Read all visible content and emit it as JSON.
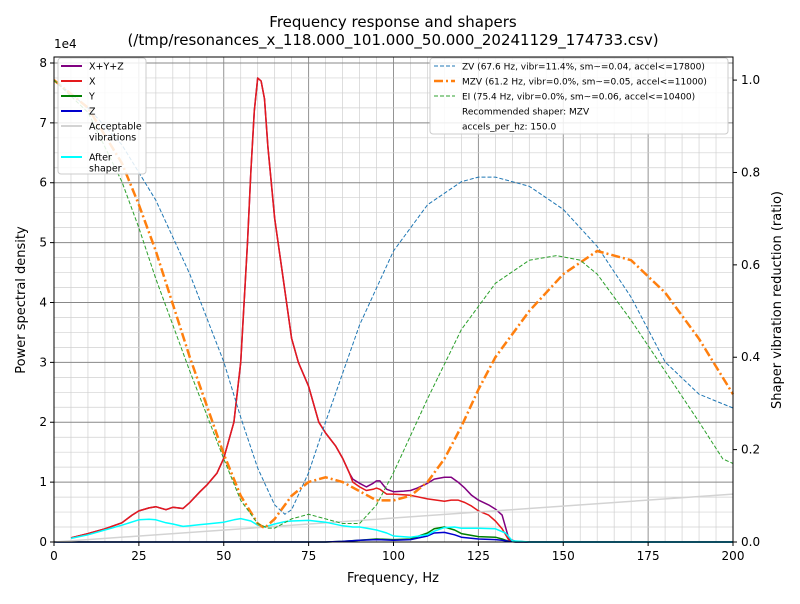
{
  "chart_data": {
    "type": "line",
    "title": "Frequency response and shapers",
    "subtitle": "(/tmp/resonances_x_118.000_101.000_50.000_20241129_174733.csv)",
    "xlabel": "Frequency, Hz",
    "ylabel": "Power spectral density",
    "y2label": "Shaper vibration reduction (ratio)",
    "y_offset_label": "1e4",
    "xlim": [
      0,
      200
    ],
    "ylim": [
      0,
      8.1
    ],
    "y2lim": [
      0,
      1.05
    ],
    "xticks": [
      "0",
      "25",
      "50",
      "75",
      "100",
      "125",
      "150",
      "175",
      "200"
    ],
    "yticks": [
      "0",
      "1",
      "2",
      "3",
      "4",
      "5",
      "6",
      "7",
      "8"
    ],
    "y2ticks": [
      "0.0",
      "0.2",
      "0.4",
      "0.6",
      "0.8",
      "1.0"
    ],
    "grid": true,
    "legend_left": [
      "X+Y+Z",
      "X",
      "Y",
      "Z",
      "Acceptable\nvibrations",
      "After\nshaper"
    ],
    "legend_right": [
      "ZV (67.6 Hz, vibr=11.4%, sm~=0.04, accel<=17800)",
      "MZV (61.2 Hz, vibr=0.0%, sm~=0.05, accel<=11000)",
      "EI (75.4 Hz, vibr=0.0%, sm~=0.06, accel<=10400)",
      "Recommended shaper: MZV",
      "accels_per_hz: 150.0"
    ],
    "colors": {
      "xyz": "#800080",
      "x": "#e41a1c",
      "y": "#008000",
      "z": "#0000cd",
      "acceptable": "#d3d3d3",
      "after": "#00ffff",
      "zv": "#1f77b4",
      "mzv": "#ff7f0e",
      "ei": "#2ca02c"
    },
    "psd_series": [
      {
        "name": "X+Y+Z",
        "key": "xyz",
        "width": 1.5,
        "x": [
          5,
          10,
          15,
          20,
          23,
          25,
          28,
          30,
          33,
          35,
          38,
          40,
          43,
          45,
          48,
          50,
          53,
          55,
          57,
          58,
          59,
          60,
          61,
          62,
          63,
          65,
          67,
          70,
          72,
          75,
          78,
          80,
          83,
          85,
          87,
          88,
          90,
          92,
          94,
          95,
          96,
          97,
          98,
          100,
          103,
          105,
          107,
          110,
          112,
          115,
          117,
          119,
          121,
          123,
          125,
          128,
          130,
          132,
          134,
          136,
          140,
          150,
          175,
          200
        ],
        "y": [
          0.07,
          0.14,
          0.22,
          0.32,
          0.45,
          0.52,
          0.57,
          0.59,
          0.54,
          0.58,
          0.56,
          0.66,
          0.84,
          0.95,
          1.15,
          1.4,
          2.0,
          3.0,
          5.0,
          6.2,
          7.2,
          7.75,
          7.7,
          7.4,
          6.6,
          5.4,
          4.6,
          3.4,
          3.0,
          2.6,
          2.0,
          1.82,
          1.6,
          1.4,
          1.15,
          1.05,
          0.98,
          0.92,
          0.98,
          1.02,
          1.02,
          0.95,
          0.88,
          0.84,
          0.85,
          0.86,
          0.9,
          0.98,
          1.05,
          1.08,
          1.08,
          1.0,
          0.9,
          0.78,
          0.7,
          0.62,
          0.55,
          0.45,
          0.05,
          0.01,
          0.0,
          0.0,
          0.0,
          0.0
        ]
      },
      {
        "name": "X",
        "key": "x",
        "width": 1.5,
        "x": [
          5,
          10,
          15,
          20,
          23,
          25,
          28,
          30,
          33,
          35,
          38,
          40,
          43,
          45,
          48,
          50,
          53,
          55,
          57,
          58,
          59,
          60,
          61,
          62,
          63,
          65,
          67,
          70,
          72,
          75,
          78,
          80,
          83,
          85,
          87,
          88,
          90,
          92,
          94,
          95,
          96,
          97,
          98,
          100,
          105,
          110,
          115,
          117,
          119,
          121,
          123,
          125,
          128,
          130,
          132,
          134,
          136,
          140,
          150,
          175,
          200
        ],
        "y": [
          0.07,
          0.14,
          0.22,
          0.32,
          0.45,
          0.52,
          0.57,
          0.59,
          0.54,
          0.58,
          0.56,
          0.66,
          0.84,
          0.95,
          1.15,
          1.4,
          2.0,
          3.0,
          5.0,
          6.2,
          7.2,
          7.75,
          7.7,
          7.4,
          6.6,
          5.4,
          4.6,
          3.4,
          3.0,
          2.6,
          2.0,
          1.82,
          1.6,
          1.4,
          1.15,
          1.0,
          0.92,
          0.86,
          0.88,
          0.9,
          0.88,
          0.84,
          0.8,
          0.8,
          0.78,
          0.72,
          0.68,
          0.7,
          0.7,
          0.66,
          0.6,
          0.52,
          0.45,
          0.35,
          0.22,
          0.03,
          0.01,
          0.0,
          0.0,
          0.0,
          0.0
        ]
      },
      {
        "name": "Y",
        "key": "y",
        "width": 1.5,
        "x": [
          0,
          80,
          85,
          90,
          95,
          100,
          105,
          110,
          112,
          115,
          118,
          120,
          125,
          130,
          132,
          134,
          136,
          200
        ],
        "y": [
          0.0,
          0.0,
          0.01,
          0.03,
          0.05,
          0.04,
          0.05,
          0.15,
          0.22,
          0.25,
          0.2,
          0.14,
          0.09,
          0.08,
          0.05,
          0.01,
          0.0,
          0.0
        ]
      },
      {
        "name": "Z",
        "key": "z",
        "width": 1.5,
        "x": [
          0,
          80,
          85,
          90,
          95,
          100,
          105,
          110,
          112,
          115,
          118,
          120,
          125,
          130,
          132,
          134,
          136,
          200
        ],
        "y": [
          0.0,
          0.0,
          0.01,
          0.03,
          0.04,
          0.03,
          0.04,
          0.1,
          0.15,
          0.16,
          0.12,
          0.08,
          0.05,
          0.04,
          0.03,
          0.01,
          0.0,
          0.0
        ]
      },
      {
        "name": "Acceptable vibrations",
        "key": "acceptable",
        "width": 1.5,
        "x": [
          0,
          200
        ],
        "y": [
          0.0,
          0.8
        ]
      },
      {
        "name": "After shaper",
        "key": "after",
        "width": 1.5,
        "x": [
          5,
          10,
          15,
          20,
          25,
          28,
          30,
          33,
          35,
          38,
          40,
          43,
          45,
          50,
          53,
          55,
          58,
          60,
          62,
          65,
          68,
          70,
          75,
          80,
          85,
          88,
          90,
          93,
          95,
          98,
          100,
          105,
          110,
          112,
          115,
          118,
          120,
          125,
          130,
          133,
          135,
          140,
          200
        ],
        "y": [
          0.06,
          0.12,
          0.2,
          0.28,
          0.37,
          0.38,
          0.37,
          0.32,
          0.3,
          0.26,
          0.27,
          0.29,
          0.3,
          0.33,
          0.37,
          0.39,
          0.35,
          0.28,
          0.25,
          0.3,
          0.34,
          0.35,
          0.36,
          0.33,
          0.27,
          0.25,
          0.25,
          0.22,
          0.2,
          0.15,
          0.1,
          0.08,
          0.12,
          0.18,
          0.24,
          0.25,
          0.23,
          0.23,
          0.22,
          0.15,
          0.02,
          0.0,
          0.0
        ]
      }
    ],
    "shaper_series": [
      {
        "name": "ZV",
        "key": "zv",
        "width": 1.0,
        "dash": "4,2",
        "x": [
          0,
          10,
          20,
          25,
          30,
          40,
          50,
          55,
          60,
          65,
          68,
          70,
          75,
          80,
          90,
          100,
          110,
          120,
          125,
          130,
          140,
          150,
          160,
          170,
          175,
          180,
          190,
          200
        ],
        "y": [
          1.0,
          0.94,
          0.86,
          0.8,
          0.74,
          0.58,
          0.39,
          0.27,
          0.16,
          0.08,
          0.06,
          0.07,
          0.15,
          0.26,
          0.47,
          0.63,
          0.73,
          0.78,
          0.79,
          0.79,
          0.77,
          0.72,
          0.64,
          0.53,
          0.46,
          0.39,
          0.32,
          0.29
        ]
      },
      {
        "name": "MZV",
        "key": "mzv",
        "width": 2.5,
        "dash": "9,3,2,3",
        "x": [
          0,
          10,
          20,
          25,
          30,
          40,
          50,
          55,
          60,
          62,
          65,
          70,
          75,
          80,
          85,
          90,
          95,
          100,
          105,
          110,
          115,
          120,
          125,
          130,
          140,
          150,
          160,
          170,
          180,
          190,
          200
        ],
        "y": [
          1.0,
          0.94,
          0.82,
          0.73,
          0.63,
          0.4,
          0.19,
          0.1,
          0.04,
          0.03,
          0.05,
          0.1,
          0.13,
          0.14,
          0.13,
          0.11,
          0.09,
          0.09,
          0.1,
          0.13,
          0.18,
          0.25,
          0.33,
          0.4,
          0.5,
          0.58,
          0.63,
          0.61,
          0.54,
          0.44,
          0.32
        ]
      },
      {
        "name": "EI",
        "key": "ei",
        "width": 1.0,
        "dash": "4,2",
        "x": [
          0,
          10,
          20,
          25,
          30,
          40,
          50,
          55,
          60,
          63,
          65,
          70,
          75,
          80,
          85,
          90,
          95,
          100,
          110,
          120,
          130,
          140,
          148,
          155,
          160,
          170,
          180,
          190,
          197,
          200
        ],
        "y": [
          1.0,
          0.93,
          0.78,
          0.68,
          0.57,
          0.37,
          0.18,
          0.09,
          0.04,
          0.03,
          0.03,
          0.05,
          0.06,
          0.05,
          0.04,
          0.04,
          0.08,
          0.15,
          0.31,
          0.46,
          0.56,
          0.61,
          0.62,
          0.61,
          0.58,
          0.48,
          0.37,
          0.26,
          0.18,
          0.17
        ]
      }
    ]
  }
}
